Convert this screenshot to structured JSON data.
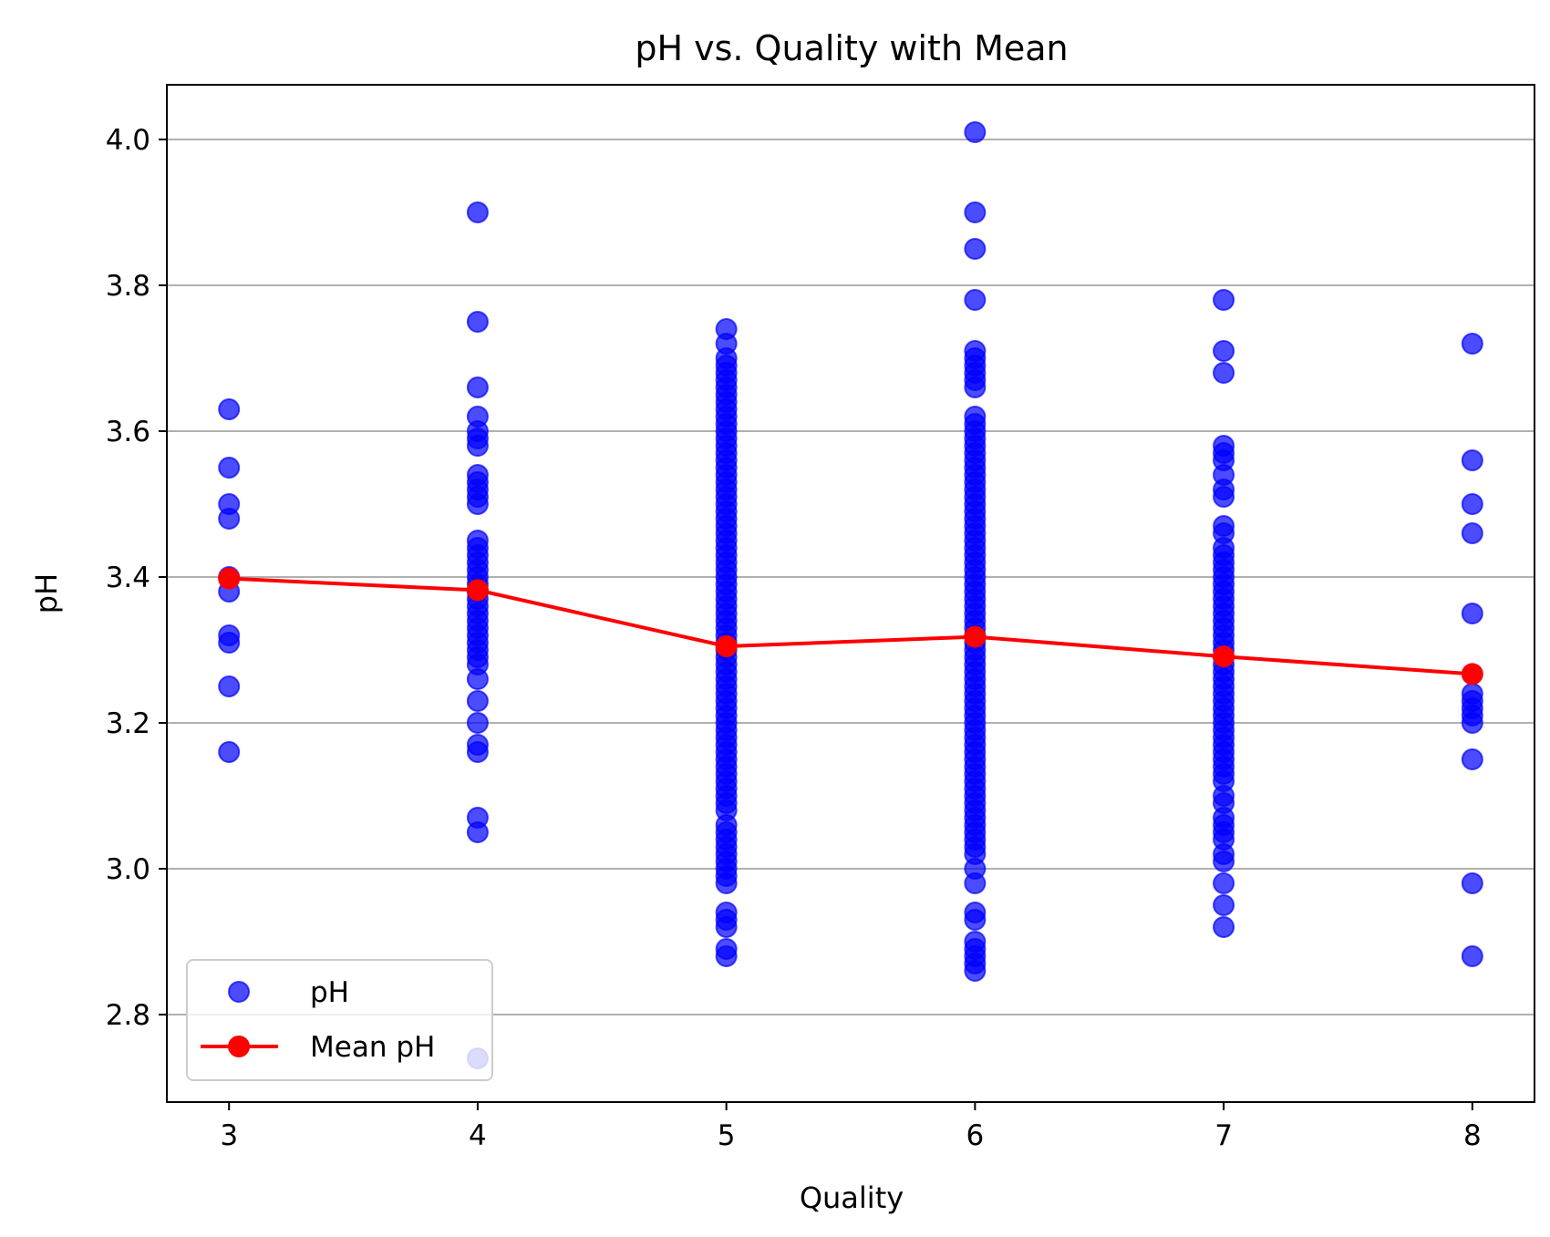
{
  "chart_data": {
    "type": "scatter",
    "title": "pH vs. Quality with Mean",
    "xlabel": "Quality",
    "ylabel": "pH",
    "xlim": [
      2.75,
      8.25
    ],
    "ylim": [
      2.68,
      4.075
    ],
    "x_ticks": [
      3,
      4,
      5,
      6,
      7,
      8
    ],
    "y_ticks": [
      2.8,
      3.0,
      3.2,
      3.4,
      3.6,
      3.8,
      4.0
    ],
    "x_tick_labels": [
      "3",
      "4",
      "5",
      "6",
      "7",
      "8"
    ],
    "y_tick_labels": [
      "2.8",
      "3.0",
      "3.2",
      "3.4",
      "3.6",
      "3.8",
      "4.0"
    ],
    "grid": "horizontal",
    "legend": "lower-left",
    "colors": {
      "scatter": "#0000ff",
      "mean": "#ff0000",
      "grid": "#b0b0b0"
    },
    "series": [
      {
        "name": "pH",
        "type": "scatter",
        "points": [
          {
            "quality": 3,
            "values": [
              3.63,
              3.55,
              3.5,
              3.48,
              3.4,
              3.38,
              3.32,
              3.31,
              3.25,
              3.16
            ]
          },
          {
            "quality": 4,
            "values": [
              3.9,
              3.75,
              3.66,
              3.62,
              3.6,
              3.59,
              3.58,
              3.54,
              3.53,
              3.52,
              3.51,
              3.5,
              3.45,
              3.44,
              3.43,
              3.42,
              3.41,
              3.4,
              3.39,
              3.38,
              3.37,
              3.36,
              3.35,
              3.34,
              3.33,
              3.32,
              3.31,
              3.3,
              3.29,
              3.28,
              3.26,
              3.23,
              3.2,
              3.17,
              3.16,
              3.07,
              3.05,
              2.74
            ]
          },
          {
            "quality": 5,
            "values": [
              3.74,
              3.72,
              3.7,
              3.69,
              3.68,
              3.67,
              3.66,
              3.65,
              3.64,
              3.63,
              3.62,
              3.61,
              3.6,
              3.59,
              3.58,
              3.57,
              3.56,
              3.55,
              3.54,
              3.53,
              3.52,
              3.51,
              3.5,
              3.49,
              3.48,
              3.47,
              3.46,
              3.45,
              3.44,
              3.43,
              3.42,
              3.41,
              3.4,
              3.39,
              3.38,
              3.37,
              3.36,
              3.35,
              3.34,
              3.33,
              3.32,
              3.31,
              3.3,
              3.29,
              3.28,
              3.27,
              3.26,
              3.25,
              3.24,
              3.23,
              3.22,
              3.21,
              3.2,
              3.19,
              3.18,
              3.17,
              3.16,
              3.15,
              3.14,
              3.13,
              3.12,
              3.11,
              3.1,
              3.09,
              3.08,
              3.06,
              3.05,
              3.04,
              3.03,
              3.02,
              3.01,
              3.0,
              2.99,
              2.98,
              2.94,
              2.93,
              2.92,
              2.89,
              2.88
            ]
          },
          {
            "quality": 6,
            "values": [
              4.01,
              3.9,
              3.85,
              3.78,
              3.71,
              3.7,
              3.69,
              3.68,
              3.67,
              3.66,
              3.62,
              3.61,
              3.6,
              3.59,
              3.58,
              3.57,
              3.56,
              3.55,
              3.54,
              3.53,
              3.52,
              3.51,
              3.5,
              3.49,
              3.48,
              3.47,
              3.46,
              3.45,
              3.44,
              3.43,
              3.42,
              3.41,
              3.4,
              3.39,
              3.38,
              3.37,
              3.36,
              3.35,
              3.34,
              3.33,
              3.32,
              3.31,
              3.3,
              3.29,
              3.28,
              3.27,
              3.26,
              3.25,
              3.24,
              3.23,
              3.22,
              3.21,
              3.2,
              3.19,
              3.18,
              3.17,
              3.16,
              3.15,
              3.14,
              3.13,
              3.12,
              3.11,
              3.1,
              3.09,
              3.08,
              3.07,
              3.06,
              3.05,
              3.04,
              3.03,
              3.02,
              3.0,
              2.98,
              2.94,
              2.93,
              2.9,
              2.89,
              2.88,
              2.87,
              2.86
            ]
          },
          {
            "quality": 7,
            "values": [
              3.78,
              3.71,
              3.68,
              3.58,
              3.57,
              3.56,
              3.54,
              3.52,
              3.51,
              3.47,
              3.46,
              3.44,
              3.43,
              3.42,
              3.41,
              3.4,
              3.39,
              3.38,
              3.37,
              3.36,
              3.35,
              3.34,
              3.33,
              3.32,
              3.31,
              3.3,
              3.29,
              3.28,
              3.27,
              3.26,
              3.25,
              3.24,
              3.23,
              3.22,
              3.21,
              3.2,
              3.19,
              3.18,
              3.17,
              3.16,
              3.15,
              3.14,
              3.13,
              3.12,
              3.1,
              3.09,
              3.07,
              3.06,
              3.05,
              3.04,
              3.02,
              3.01,
              2.98,
              2.95,
              2.92
            ]
          },
          {
            "quality": 8,
            "values": [
              3.72,
              3.56,
              3.5,
              3.46,
              3.35,
              3.24,
              3.23,
              3.22,
              3.21,
              3.2,
              3.15,
              2.98,
              2.88
            ]
          }
        ]
      },
      {
        "name": "Mean pH",
        "type": "line",
        "x": [
          3,
          4,
          5,
          6,
          7,
          8
        ],
        "y": [
          3.398,
          3.382,
          3.305,
          3.318,
          3.291,
          3.267
        ]
      }
    ]
  }
}
